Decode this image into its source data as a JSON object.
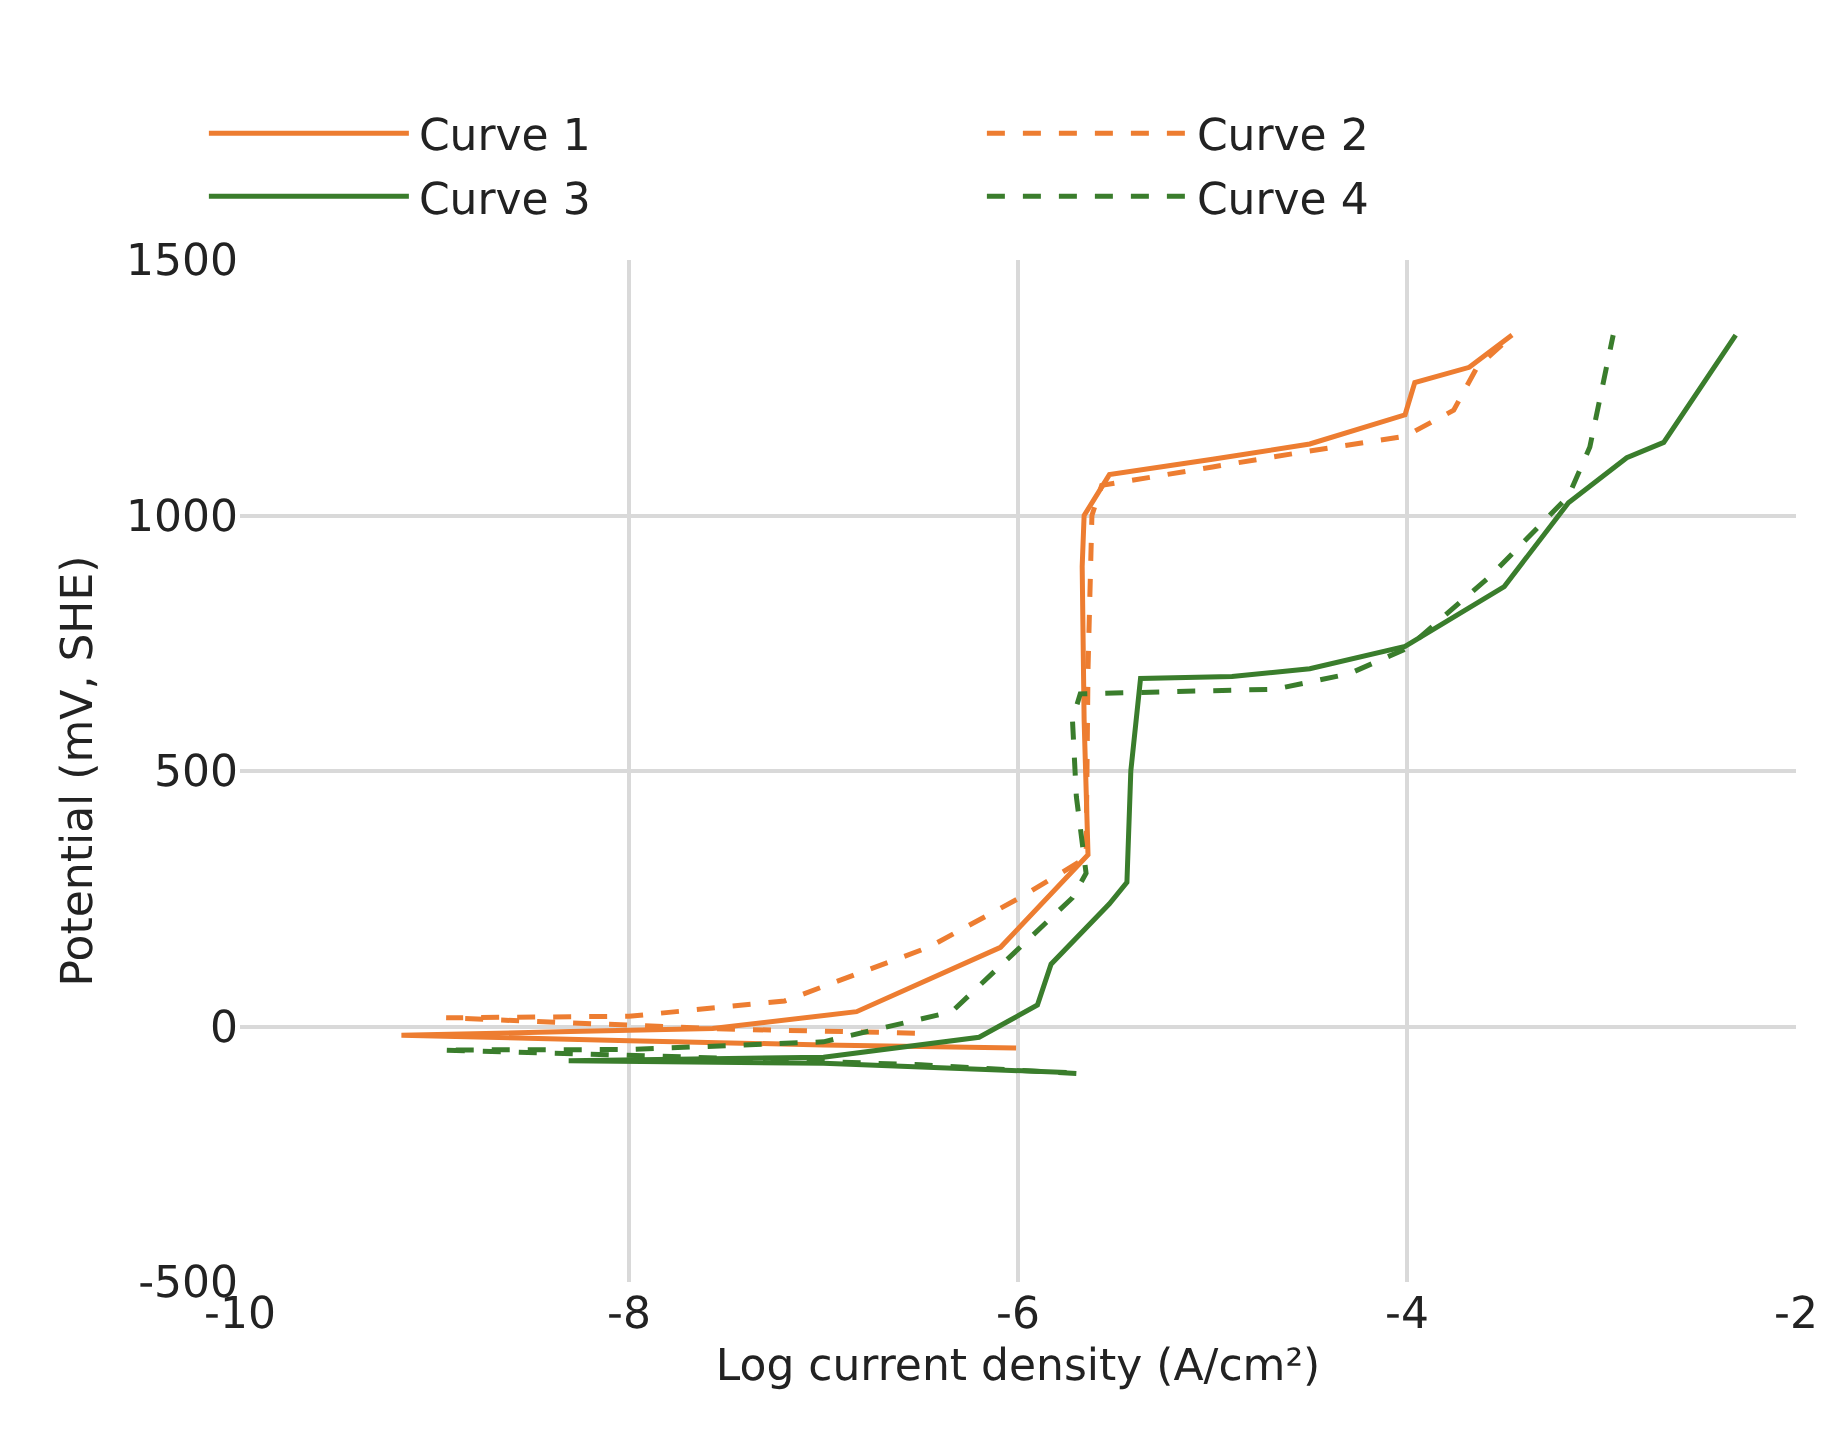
{
  "chart_data": {
    "type": "line",
    "xlabel": "Log current density (A/cm²)",
    "ylabel": "Potential (mV, SHE)",
    "xlim": [
      -10,
      -2
    ],
    "xticks": [
      -10,
      -8,
      -6,
      -4,
      -2
    ],
    "ylim": [
      -500,
      1500
    ],
    "yticks": [
      -500,
      0,
      500,
      1000,
      1500
    ],
    "grid": true,
    "legend": "top",
    "marker": "none",
    "series": [
      {
        "name": "Curve 1",
        "color": "#ed7d31",
        "line_style": "solid",
        "x": [
          -6.01,
          -7.0,
          -8.0,
          -9.17,
          -8.3,
          -7.57,
          -6.83,
          -6.09,
          -5.64,
          -5.66,
          -5.67,
          -5.66,
          -5.53,
          -5.0,
          -4.5,
          -4.01,
          -3.96,
          -3.68,
          -3.46
        ],
        "values": [
          -42,
          -36,
          -28,
          -17,
          -10,
          -4,
          29,
          155,
          336,
          600,
          900,
          1000,
          1080,
          1110,
          1140,
          1197,
          1260,
          1290,
          1353
        ]
      },
      {
        "name": "Curve 2",
        "color": "#ed7d31",
        "line_style": "dashed",
        "x": [
          -6.53,
          -7.5,
          -8.94,
          -8.0,
          -7.2,
          -6.46,
          -6.0,
          -5.65,
          -5.64,
          -5.62,
          -5.57,
          -5.0,
          -4.57,
          -4.01,
          -3.76,
          -3.64,
          -3.48
        ],
        "values": [
          -13,
          -5,
          17,
          20,
          50,
          155,
          250,
          330,
          700,
          1000,
          1059,
          1095,
          1122,
          1155,
          1206,
          1290,
          1345
        ]
      },
      {
        "name": "Curve 3",
        "color": "#3a7d2c",
        "line_style": "solid",
        "x": [
          -5.75,
          -7.0,
          -8.31,
          -7.0,
          -6.2,
          -5.9,
          -5.83,
          -5.53,
          -5.44,
          -5.42,
          -5.37,
          -4.9,
          -4.5,
          -4.01,
          -3.5,
          -3.17,
          -2.87,
          -2.68,
          -2.31
        ],
        "values": [
          -90,
          -72,
          -67,
          -60,
          -21,
          42,
          122,
          240,
          282,
          500,
          681,
          685,
          700,
          744,
          861,
          1025,
          1113,
          1143,
          1353
        ]
      },
      {
        "name": "Curve 4",
        "color": "#3a7d2c",
        "line_style": "dashed",
        "x": [
          -5.7,
          -6.5,
          -7.5,
          -8.96,
          -8.0,
          -7.0,
          -6.34,
          -5.72,
          -5.65,
          -5.7,
          -5.72,
          -5.68,
          -4.68,
          -4.3,
          -4.0,
          -3.57,
          -3.17,
          -3.06,
          -2.94
        ],
        "values": [
          -92,
          -75,
          -62,
          -46,
          -45,
          -30,
          29,
          252,
          300,
          450,
          600,
          651,
          660,
          690,
          740,
          882,
          1038,
          1134,
          1353
        ]
      }
    ]
  }
}
